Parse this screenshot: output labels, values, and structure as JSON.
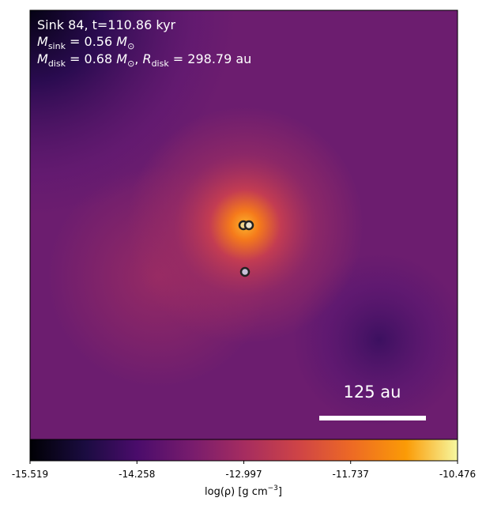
{
  "chart_data": {
    "type": "image",
    "annotations": {
      "line1": "Sink 84, t=110.86 kyr",
      "line2": {
        "symbol": "M",
        "subscript": "sink",
        "value": " = 0.56 ",
        "unit": "M",
        "unit_subscript": "⊙"
      },
      "line3": {
        "symbol": "M",
        "subscript": "disk",
        "value": " = 0.68 ",
        "unit": "M",
        "unit_subscript": "⊙",
        "sep": ", ",
        "symbol2": "R",
        "subscript2": "disk",
        "value2": " = 298.79 au"
      }
    },
    "scale_bar": "125 au",
    "colorbar": {
      "colormap": "inferno",
      "clim": [
        -15.519,
        -10.476
      ],
      "ticks": [
        -15.519,
        -14.258,
        -12.997,
        -11.737,
        -10.476
      ],
      "label": {
        "text": "log(ρ) [g cm",
        "superscript": "−3",
        "close": "]"
      }
    }
  }
}
